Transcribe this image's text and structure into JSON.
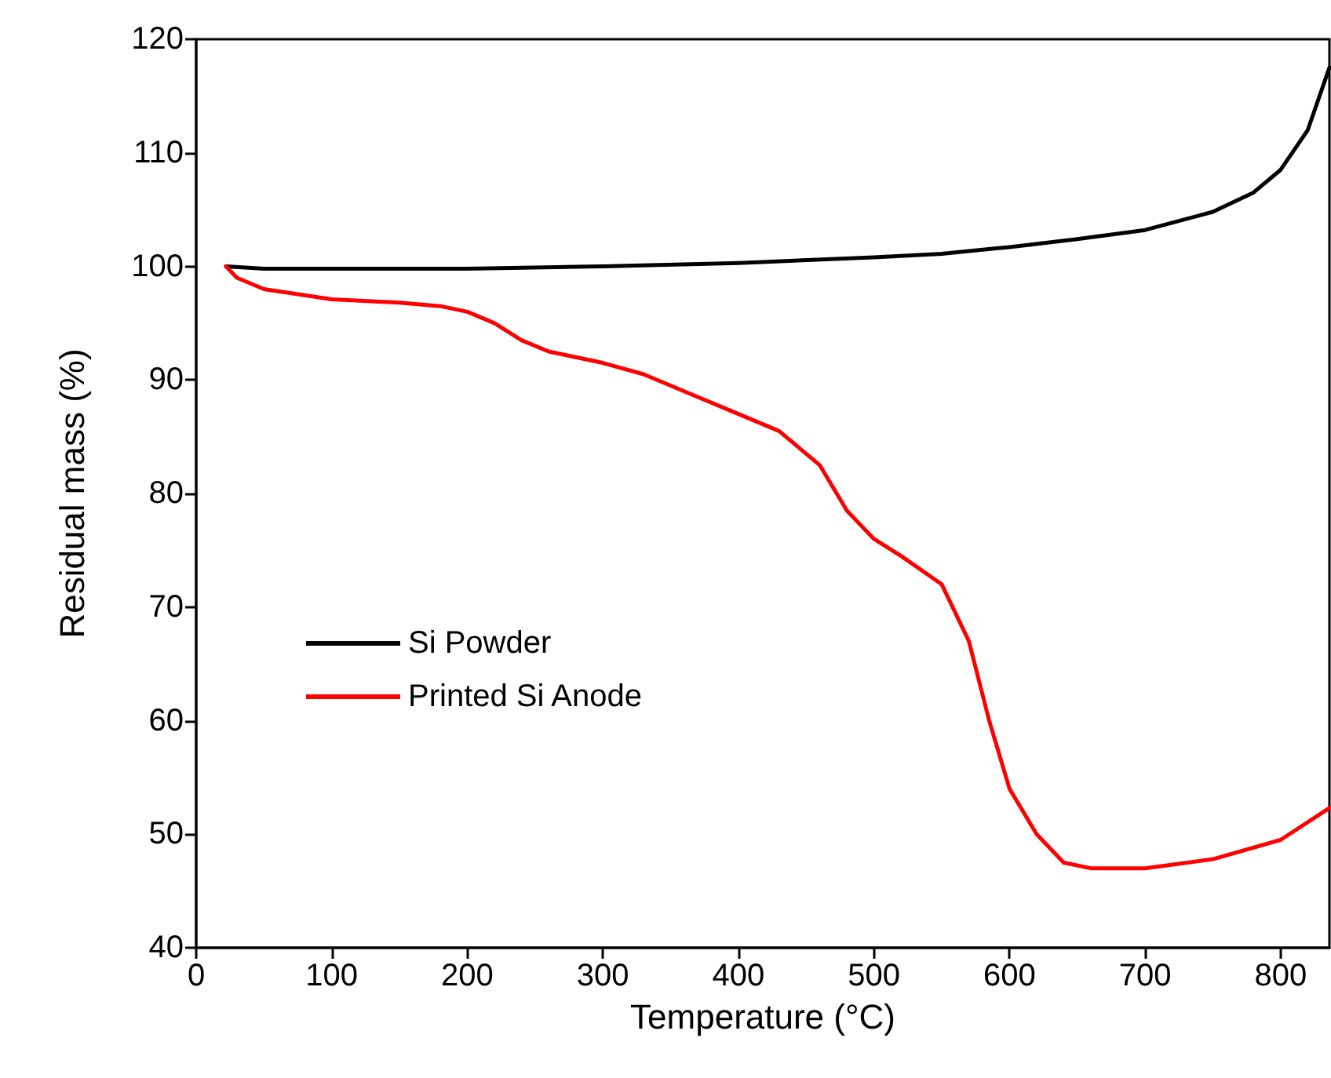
{
  "chart_data": {
    "type": "line",
    "xlabel": "Temperature (°C)",
    "ylabel": "Residual mass (%)",
    "xlim": [
      0,
      836
    ],
    "xticks": [
      0,
      100,
      200,
      300,
      400,
      500,
      600,
      700,
      800
    ],
    "ylim": [
      40,
      120
    ],
    "yticks": [
      40,
      50,
      60,
      70,
      80,
      90,
      100,
      110,
      120
    ],
    "grid": false,
    "legend": "left",
    "marker": "none",
    "line_style": "solid",
    "series": [
      {
        "name": "Si Powder",
        "color": "#000000",
        "x": [
          22,
          50,
          100,
          200,
          300,
          400,
          500,
          550,
          600,
          650,
          700,
          750,
          780,
          800,
          820,
          836
        ],
        "values": [
          100,
          99.8,
          99.8,
          99.8,
          100,
          100.3,
          100.8,
          101.1,
          101.7,
          102.4,
          103.2,
          104.8,
          106.5,
          108.5,
          112,
          117.5
        ]
      },
      {
        "name": "Printed Si Anode",
        "color": "#ff0000",
        "x": [
          22,
          30,
          50,
          100,
          150,
          180,
          200,
          220,
          240,
          260,
          300,
          330,
          360,
          400,
          430,
          460,
          480,
          500,
          520,
          550,
          570,
          585,
          600,
          620,
          640,
          660,
          700,
          750,
          800,
          836
        ],
        "values": [
          100,
          99,
          98,
          97.1,
          96.8,
          96.5,
          96,
          95,
          93.5,
          92.5,
          91.5,
          90.5,
          89,
          87,
          85.5,
          82.5,
          78.5,
          76,
          74.5,
          72,
          67,
          60,
          54,
          50,
          47.5,
          47,
          47,
          47.8,
          49.5,
          52.3
        ]
      }
    ]
  }
}
